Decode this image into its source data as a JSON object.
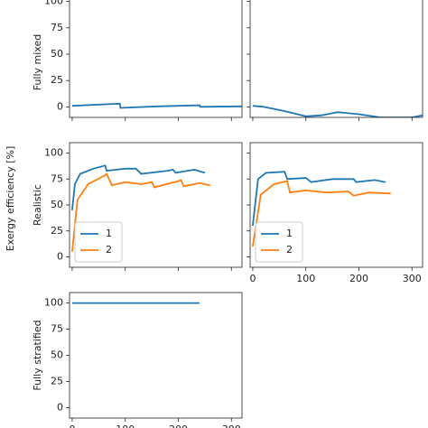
{
  "ylabel": "Exergy efficiency [%]",
  "chart_data": [
    {
      "type": "line",
      "ylabel": "Fully mixed",
      "xlim": [
        -5,
        320
      ],
      "ylim": [
        -10,
        110
      ],
      "xticks": [
        0,
        100,
        200,
        300
      ],
      "yticks": [
        0,
        25,
        50,
        75,
        100
      ],
      "series": [
        {
          "name": "1",
          "color": "#1f77b4",
          "x": [
            0,
            90,
            91,
            160,
            240,
            241,
            320
          ],
          "values": [
            1,
            3,
            -1,
            0.5,
            1.5,
            0,
            0.5
          ]
        }
      ]
    },
    {
      "type": "line",
      "xlim": [
        -5,
        320
      ],
      "ylim": [
        -10,
        110
      ],
      "xticks": [
        0,
        100,
        200,
        300
      ],
      "yticks": [
        0,
        25,
        50,
        75,
        100
      ],
      "series": [
        {
          "name": "1",
          "color": "#1f77b4",
          "x": [
            0,
            20,
            60,
            100,
            130,
            160,
            200,
            240,
            300,
            320
          ],
          "values": [
            1,
            0,
            -4,
            -9,
            -8,
            -5,
            -7,
            -10,
            -10,
            -8
          ]
        }
      ]
    },
    {
      "type": "line",
      "ylabel": "Realistic",
      "xlim": [
        -5,
        320
      ],
      "ylim": [
        -10,
        110
      ],
      "xticks": [
        0,
        100,
        200,
        300
      ],
      "yticks": [
        0,
        25,
        50,
        75,
        100
      ],
      "legend": "lower left",
      "series": [
        {
          "name": "1",
          "color": "#1f77b4",
          "x": [
            0,
            5,
            15,
            40,
            62,
            65,
            100,
            120,
            130,
            180,
            190,
            195,
            230,
            250
          ],
          "values": [
            45,
            70,
            80,
            85,
            88,
            83,
            85,
            85,
            80,
            83,
            84,
            81,
            84,
            81
          ]
        },
        {
          "name": "2",
          "color": "#ff7f0e",
          "x": [
            0,
            10,
            30,
            60,
            65,
            75,
            100,
            130,
            150,
            155,
            200,
            205,
            210,
            240,
            260
          ],
          "values": [
            5,
            55,
            70,
            78,
            80,
            69,
            72,
            70,
            72,
            67,
            73,
            74,
            68,
            71,
            69
          ]
        }
      ]
    },
    {
      "type": "line",
      "xlim": [
        -5,
        320
      ],
      "ylim": [
        -10,
        110
      ],
      "xticks": [
        0,
        100,
        200,
        300
      ],
      "yticks": [
        0,
        25,
        50,
        75,
        100
      ],
      "legend": "lower left",
      "series": [
        {
          "name": "1",
          "color": "#1f77b4",
          "x": [
            0,
            10,
            25,
            60,
            65,
            100,
            110,
            150,
            190,
            195,
            230,
            250
          ],
          "values": [
            30,
            75,
            81,
            82,
            75,
            76,
            72,
            75,
            75,
            72,
            74,
            72
          ]
        },
        {
          "name": "2",
          "color": "#ff7f0e",
          "x": [
            0,
            15,
            40,
            65,
            70,
            100,
            140,
            180,
            190,
            220,
            260
          ],
          "values": [
            10,
            60,
            70,
            73,
            62,
            64,
            62,
            63,
            59,
            62,
            61
          ]
        }
      ]
    },
    {
      "type": "line",
      "ylabel": "Fully stratified",
      "xlim": [
        -5,
        320
      ],
      "ylim": [
        -10,
        110
      ],
      "xticks": [
        0,
        100,
        200,
        300
      ],
      "yticks": [
        0,
        25,
        50,
        75,
        100
      ],
      "series": [
        {
          "name": "1",
          "color": "#1f77b4",
          "x": [
            0,
            240
          ],
          "values": [
            100,
            100
          ]
        }
      ]
    }
  ]
}
